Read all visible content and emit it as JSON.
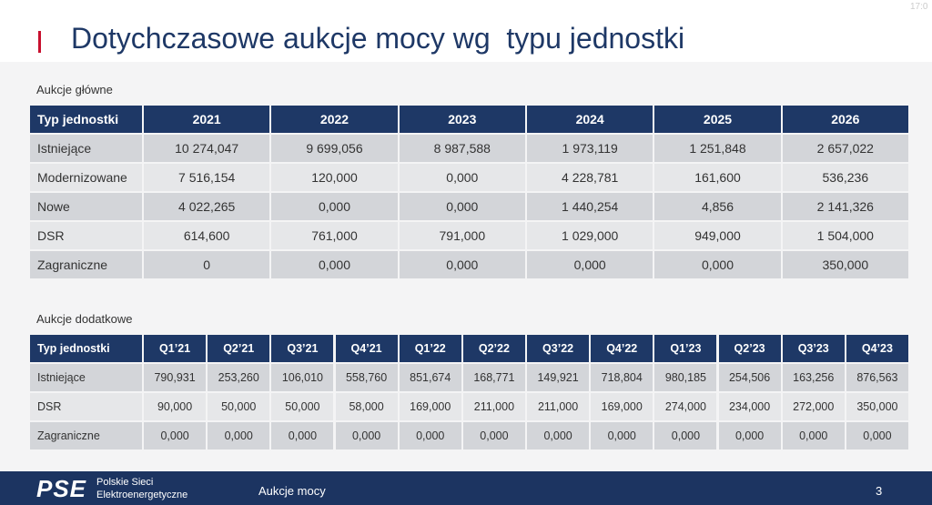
{
  "header": {
    "title": "Dotychczasowe aukcje mocy wg  typu jednostki",
    "clock": "17:0"
  },
  "main_table": {
    "caption": "Aukcje główne",
    "columns": [
      "Typ jednostki",
      "2021",
      "2022",
      "2023",
      "2024",
      "2025",
      "2026"
    ],
    "rows": [
      [
        "Istniejące",
        "10 274,047",
        "9 699,056",
        "8 987,588",
        "1 973,119",
        "1 251,848",
        "2 657,022"
      ],
      [
        "Modernizowane",
        "7 516,154",
        "120,000",
        "0,000",
        "4 228,781",
        "161,600",
        "536,236"
      ],
      [
        "Nowe",
        "4 022,265",
        "0,000",
        "0,000",
        "1 440,254",
        "4,856",
        "2 141,326"
      ],
      [
        "DSR",
        "614,600",
        "761,000",
        "791,000",
        "1 029,000",
        "949,000",
        "1 504,000"
      ],
      [
        "Zagraniczne",
        "0",
        "0,000",
        "0,000",
        "0,000",
        "0,000",
        "350,000"
      ]
    ]
  },
  "additional_table": {
    "caption": "Aukcje dodatkowe",
    "columns": [
      "Typ jednostki",
      "Q1’21",
      "Q2’21",
      "Q3’21",
      "Q4’21",
      "Q1’22",
      "Q2’22",
      "Q3’22",
      "Q4’22",
      "Q1’23",
      "Q2’23",
      "Q3’23",
      "Q4’23"
    ],
    "rows": [
      [
        "Istniejące",
        "790,931",
        "253,260",
        "106,010",
        "558,760",
        "851,674",
        "168,771",
        "149,921",
        "718,804",
        "980,185",
        "254,506",
        "163,256",
        "876,563"
      ],
      [
        "DSR",
        "90,000",
        "50,000",
        "50,000",
        "58,000",
        "169,000",
        "211,000",
        "211,000",
        "169,000",
        "274,000",
        "234,000",
        "272,000",
        "350,000"
      ],
      [
        "Zagraniczne",
        "0,000",
        "0,000",
        "0,000",
        "0,000",
        "0,000",
        "0,000",
        "0,000",
        "0,000",
        "0,000",
        "0,000",
        "0,000",
        "0,000"
      ]
    ]
  },
  "footer": {
    "logo": "PSE",
    "company_line1": "Polskie Sieci",
    "company_line2": "Elektroenergetyczne",
    "section": "Aukcje mocy",
    "page": "3"
  }
}
